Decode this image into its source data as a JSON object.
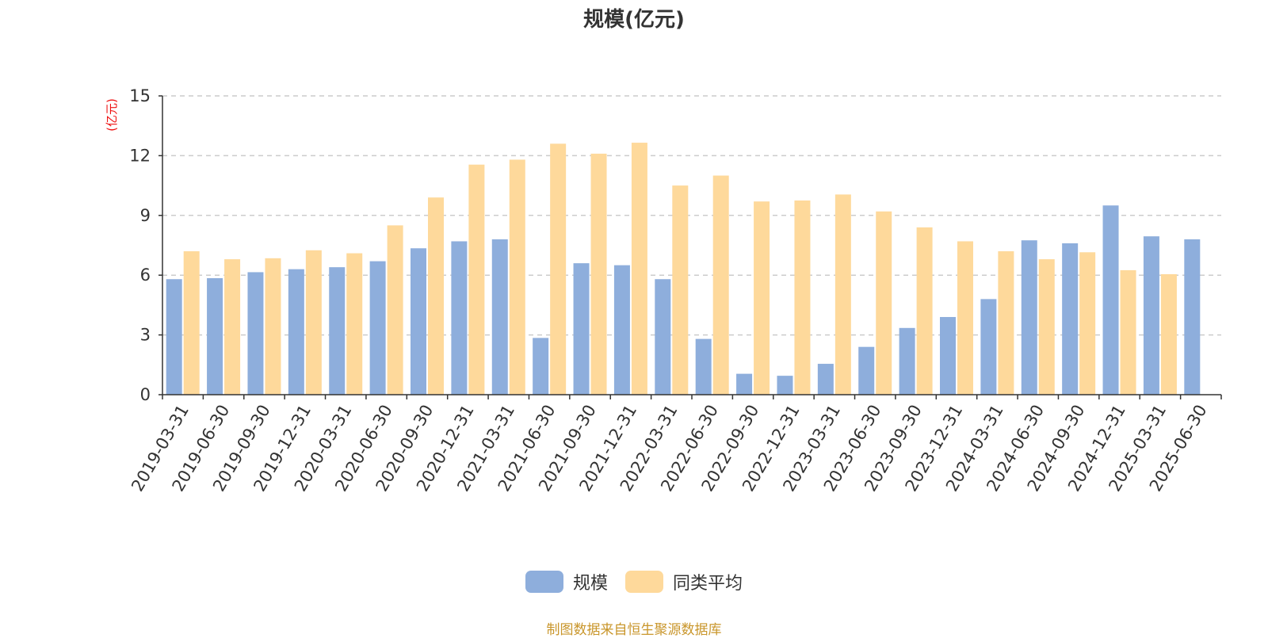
{
  "chart_data": {
    "type": "bar",
    "title": "规模(亿元)",
    "ylabel": "(亿元)",
    "xlabel": "",
    "ylim": [
      0,
      15
    ],
    "yticks": [
      0,
      3,
      6,
      9,
      12,
      15
    ],
    "grid": true,
    "legend_position": "bottom-center",
    "categories": [
      "2019-03-31",
      "2019-06-30",
      "2019-09-30",
      "2019-12-31",
      "2020-03-31",
      "2020-06-30",
      "2020-09-30",
      "2020-12-31",
      "2021-03-31",
      "2021-06-30",
      "2021-09-30",
      "2021-12-31",
      "2022-03-31",
      "2022-06-30",
      "2022-09-30",
      "2022-12-31",
      "2023-03-31",
      "2023-06-30",
      "2023-09-30",
      "2023-12-31",
      "2024-03-31",
      "2024-06-30",
      "2024-09-30",
      "2024-12-31",
      "2025-03-31",
      "2025-06-30"
    ],
    "series": [
      {
        "name": "规模",
        "color": "#8eaedc",
        "values": [
          5.8,
          5.85,
          6.15,
          6.3,
          6.4,
          6.7,
          7.35,
          7.7,
          7.8,
          2.85,
          6.6,
          6.5,
          5.8,
          2.8,
          1.05,
          0.95,
          1.55,
          2.4,
          3.35,
          3.9,
          4.8,
          7.75,
          7.6,
          9.5,
          7.95,
          7.8
        ]
      },
      {
        "name": "同类平均",
        "color": "#fed99b",
        "values": [
          7.2,
          6.8,
          6.85,
          7.25,
          7.1,
          8.5,
          9.9,
          11.55,
          11.8,
          12.6,
          12.1,
          12.65,
          10.5,
          11.0,
          9.7,
          9.75,
          10.05,
          9.2,
          8.4,
          7.7,
          7.2,
          6.8,
          7.15,
          6.25,
          6.05,
          null
        ]
      }
    ]
  },
  "source_note": "制图数据来自恒生聚源数据库"
}
